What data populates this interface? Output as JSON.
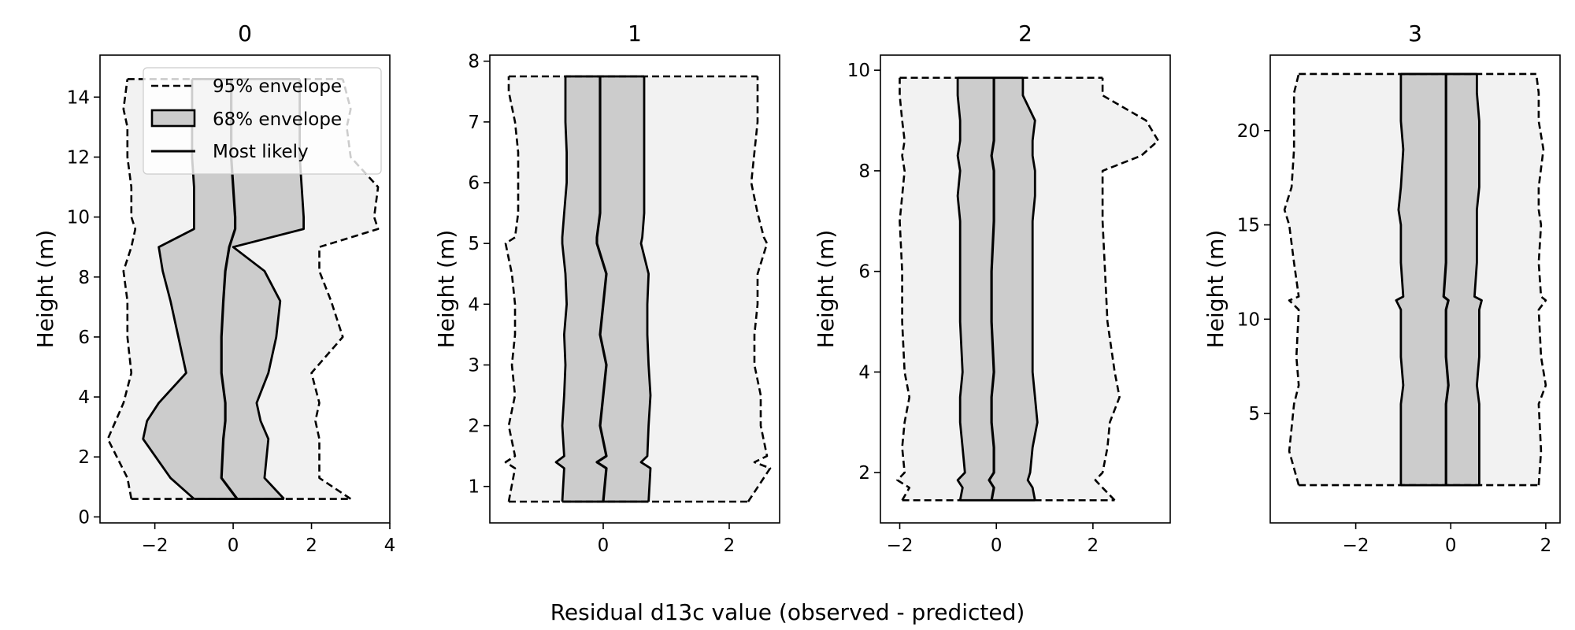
{
  "figure": {
    "xlabel": "Residual d13c value (observed - predicted)",
    "ylabel": "Height (m)"
  },
  "legend": {
    "location": "upper-right of panel 0",
    "entries": [
      "95% envelope",
      "68% envelope",
      "Most likely"
    ]
  },
  "colors": {
    "outer_fill": "#f2f2f2",
    "inner_fill": "#cccccc",
    "line": "#000000"
  },
  "chart_data": [
    {
      "type": "area",
      "title": "0",
      "xlabel": "Residual d13c value (observed - predicted)",
      "ylabel": "Height (m)",
      "xlim": [
        -3.4,
        4.0
      ],
      "ylim": [
        -0.2,
        15.4
      ],
      "xticks": [
        -2,
        0,
        2,
        4
      ],
      "yticks": [
        0,
        2,
        4,
        6,
        8,
        10,
        12,
        14
      ],
      "y": [
        0.6,
        1.3,
        2.6,
        3.2,
        3.8,
        4.8,
        6.0,
        7.2,
        8.2,
        9.0,
        9.6,
        10.0,
        11.0,
        12.0,
        13.0,
        13.6,
        14.6
      ],
      "most_likely": [
        0.1,
        -0.3,
        -0.25,
        -0.2,
        -0.2,
        -0.3,
        -0.3,
        -0.25,
        -0.2,
        -0.1,
        0.05,
        0.05,
        0.0,
        -0.05,
        -0.05,
        -0.05,
        -0.05
      ],
      "env68_low": [
        -1.0,
        -1.6,
        -2.3,
        -2.2,
        -1.9,
        -1.2,
        -1.4,
        -1.6,
        -1.8,
        -1.9,
        -1.0,
        -1.0,
        -1.0,
        -1.05,
        -1.05,
        -1.05,
        -1.05
      ],
      "env68_high": [
        1.3,
        0.8,
        0.9,
        0.7,
        0.6,
        0.9,
        1.1,
        1.2,
        0.8,
        0.0,
        1.8,
        1.8,
        1.75,
        1.7,
        1.7,
        1.7,
        1.7
      ],
      "env95_low": [
        -2.6,
        -2.7,
        -3.2,
        -3.0,
        -2.8,
        -2.6,
        -2.7,
        -2.7,
        -2.8,
        -2.6,
        -2.5,
        -2.6,
        -2.6,
        -2.7,
        -2.7,
        -2.8,
        -2.7
      ],
      "env95_high": [
        3.0,
        2.2,
        2.2,
        2.1,
        2.2,
        2.0,
        2.8,
        2.5,
        2.2,
        2.2,
        3.7,
        3.6,
        3.7,
        3.0,
        2.9,
        3.0,
        2.8
      ]
    },
    {
      "type": "area",
      "title": "1",
      "xlabel": "Residual d13c value (observed - predicted)",
      "ylabel": "Height (m)",
      "xlim": [
        -1.8,
        2.8
      ],
      "ylim": [
        0.4,
        8.1
      ],
      "xticks": [
        0,
        2
      ],
      "yticks": [
        1,
        2,
        3,
        4,
        5,
        6,
        7,
        8
      ],
      "y": [
        0.75,
        1.3,
        1.4,
        1.5,
        2.0,
        2.5,
        3.0,
        3.5,
        4.0,
        4.5,
        5.0,
        5.1,
        5.5,
        6.0,
        6.5,
        7.0,
        7.5,
        7.75
      ],
      "most_likely": [
        0.0,
        0.05,
        -0.1,
        0.05,
        -0.05,
        0.0,
        0.05,
        -0.05,
        0.0,
        0.05,
        -0.1,
        -0.1,
        -0.05,
        -0.05,
        -0.05,
        -0.05,
        -0.05,
        -0.05
      ],
      "env68_low": [
        -0.65,
        -0.62,
        -0.75,
        -0.62,
        -0.65,
        -0.62,
        -0.6,
        -0.62,
        -0.58,
        -0.6,
        -0.65,
        -0.65,
        -0.62,
        -0.58,
        -0.58,
        -0.6,
        -0.6,
        -0.6
      ],
      "env68_high": [
        0.72,
        0.75,
        0.6,
        0.7,
        0.72,
        0.75,
        0.72,
        0.7,
        0.7,
        0.72,
        0.6,
        0.62,
        0.65,
        0.65,
        0.65,
        0.65,
        0.65,
        0.65
      ],
      "env95_low": [
        -1.5,
        -1.4,
        -1.55,
        -1.4,
        -1.5,
        -1.4,
        -1.45,
        -1.4,
        -1.4,
        -1.45,
        -1.55,
        -1.4,
        -1.35,
        -1.35,
        -1.35,
        -1.4,
        -1.5,
        -1.5
      ],
      "env95_high": [
        2.3,
        2.65,
        2.4,
        2.6,
        2.5,
        2.5,
        2.4,
        2.4,
        2.45,
        2.45,
        2.6,
        2.55,
        2.45,
        2.35,
        2.4,
        2.45,
        2.45,
        2.45
      ]
    },
    {
      "type": "area",
      "title": "2",
      "xlabel": "Residual d13c value (observed - predicted)",
      "ylabel": "Height (m)",
      "xlim": [
        -2.4,
        3.6
      ],
      "ylim": [
        1.0,
        10.3
      ],
      "xticks": [
        -2,
        0,
        2
      ],
      "yticks": [
        2,
        4,
        6,
        8,
        10
      ],
      "y": [
        1.45,
        1.7,
        1.85,
        2.0,
        2.5,
        3.0,
        3.5,
        4.0,
        5.0,
        6.0,
        7.0,
        7.5,
        8.0,
        8.3,
        8.6,
        9.0,
        9.5,
        9.85
      ],
      "most_likely": [
        -0.1,
        -0.05,
        -0.15,
        -0.05,
        -0.05,
        -0.1,
        -0.1,
        -0.05,
        -0.1,
        -0.1,
        -0.05,
        -0.05,
        -0.05,
        -0.1,
        -0.05,
        -0.05,
        -0.05,
        -0.05
      ],
      "env68_low": [
        -0.75,
        -0.7,
        -0.8,
        -0.65,
        -0.7,
        -0.75,
        -0.75,
        -0.7,
        -0.75,
        -0.75,
        -0.75,
        -0.8,
        -0.75,
        -0.8,
        -0.75,
        -0.75,
        -0.8,
        -0.8
      ],
      "env68_high": [
        0.8,
        0.75,
        0.65,
        0.7,
        0.75,
        0.85,
        0.8,
        0.75,
        0.75,
        0.75,
        0.75,
        0.8,
        0.8,
        0.75,
        0.75,
        0.8,
        0.55,
        0.55
      ],
      "env95_low": [
        -1.95,
        -1.8,
        -2.05,
        -1.9,
        -1.95,
        -1.9,
        -1.8,
        -1.9,
        -1.95,
        -1.95,
        -2.0,
        -1.95,
        -1.9,
        -1.95,
        -1.9,
        -1.95,
        -2.0,
        -2.0
      ],
      "env95_high": [
        2.45,
        2.2,
        2.05,
        2.2,
        2.3,
        2.35,
        2.55,
        2.45,
        2.3,
        2.25,
        2.2,
        2.2,
        2.2,
        3.0,
        3.35,
        3.1,
        2.2,
        2.2
      ]
    },
    {
      "type": "area",
      "title": "3",
      "xlabel": "Residual d13c value (observed - predicted)",
      "ylabel": "Height (m)",
      "xlim": [
        -3.8,
        2.3
      ],
      "ylim": [
        -0.8,
        24.0
      ],
      "xticks": [
        -2,
        0,
        2
      ],
      "yticks": [
        5,
        10,
        15,
        20
      ],
      "y": [
        1.2,
        3.0,
        5.5,
        6.5,
        8.0,
        10.5,
        11.0,
        11.2,
        13.0,
        15.0,
        15.8,
        17.0,
        19.0,
        20.5,
        22.0,
        23.0
      ],
      "most_likely": [
        -0.1,
        -0.1,
        -0.1,
        -0.05,
        -0.1,
        -0.1,
        -0.05,
        -0.15,
        -0.1,
        -0.1,
        -0.1,
        -0.1,
        -0.1,
        -0.1,
        -0.1,
        -0.1
      ],
      "env68_low": [
        -1.05,
        -1.05,
        -1.05,
        -1.0,
        -1.05,
        -1.05,
        -1.15,
        -1.0,
        -1.05,
        -1.05,
        -1.1,
        -1.05,
        -1.0,
        -1.05,
        -1.05,
        -1.05
      ],
      "env68_high": [
        0.6,
        0.6,
        0.6,
        0.55,
        0.6,
        0.6,
        0.65,
        0.5,
        0.55,
        0.55,
        0.55,
        0.6,
        0.6,
        0.6,
        0.55,
        0.55
      ],
      "env95_low": [
        -3.2,
        -3.4,
        -3.3,
        -3.2,
        -3.25,
        -3.2,
        -3.4,
        -3.2,
        -3.3,
        -3.4,
        -3.5,
        -3.35,
        -3.3,
        -3.3,
        -3.3,
        -3.2
      ],
      "env95_high": [
        1.85,
        1.9,
        1.85,
        2.0,
        1.9,
        1.85,
        2.0,
        1.9,
        1.85,
        1.9,
        1.85,
        1.85,
        1.95,
        1.85,
        1.85,
        1.8
      ]
    }
  ]
}
